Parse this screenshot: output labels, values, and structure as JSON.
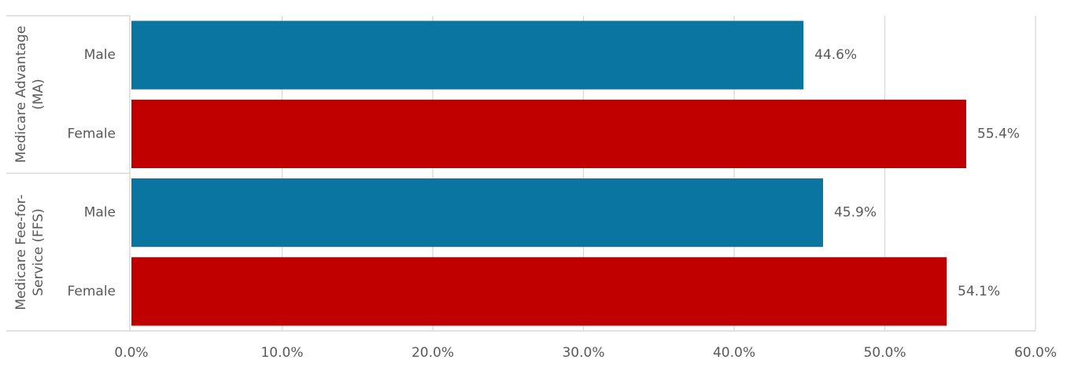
{
  "chart_data": {
    "type": "bar",
    "orientation": "horizontal",
    "groups": [
      {
        "name": "Medicare Advantage (MA)",
        "categories": [
          "Male",
          "Female"
        ],
        "values": [
          44.6,
          55.4
        ],
        "value_labels": [
          "44.6%",
          "55.4%"
        ],
        "colors": [
          "#0b75a1",
          "#c00000"
        ]
      },
      {
        "name": "Medicare Fee-for-Service (FFS)",
        "categories": [
          "Male",
          "Female"
        ],
        "values": [
          45.9,
          54.1
        ],
        "value_labels": [
          "45.9%",
          "54.1%"
        ],
        "colors": [
          "#0b75a1",
          "#c00000"
        ]
      }
    ],
    "xlim": [
      0,
      60
    ],
    "xticks": [
      {
        "value": 0,
        "label": "0.0%"
      },
      {
        "value": 10,
        "label": "10.0%"
      },
      {
        "value": 20,
        "label": "20.0%"
      },
      {
        "value": 30,
        "label": "30.0%"
      },
      {
        "value": 40,
        "label": "40.0%"
      },
      {
        "value": 50,
        "label": "50.0%"
      },
      {
        "value": 60,
        "label": "60.0%"
      }
    ],
    "grid": true
  }
}
